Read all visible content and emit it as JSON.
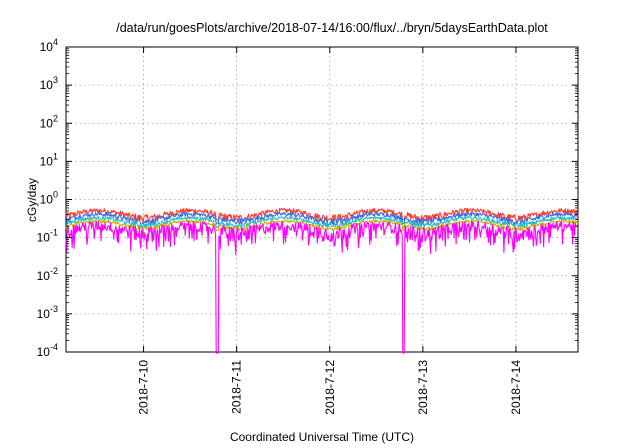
{
  "chart_data": {
    "type": "line",
    "title": "/data/run/goesPlots/archive/2018-07-14/16:00/flux/../bryn/5daysEarthData.plot",
    "xlabel": "Coordinated Universal Time (UTC)",
    "ylabel": "cGy/day",
    "y_scale": "log",
    "ylim": [
      0.0001,
      10000
    ],
    "xlim": [
      "2018-07-09 04:00",
      "2018-07-14 16:00"
    ],
    "x_ticks": [
      "2018-7-10",
      "2018-7-11",
      "2018-7-12",
      "2018-7-13",
      "2018-7-14"
    ],
    "y_ticks": [
      {
        "base": "10",
        "exp": "-4"
      },
      {
        "base": "10",
        "exp": "-3"
      },
      {
        "base": "10",
        "exp": "-2"
      },
      {
        "base": "10",
        "exp": "-1"
      },
      {
        "base": "10",
        "exp": "0"
      },
      {
        "base": "10",
        "exp": "1"
      },
      {
        "base": "10",
        "exp": "2"
      },
      {
        "base": "10",
        "exp": "3"
      },
      {
        "base": "10",
        "exp": "4"
      }
    ],
    "grid": true,
    "series": [
      {
        "color": "#ff3b2f",
        "level": 0.42,
        "spread": 0.18
      },
      {
        "color": "#3b6fe0",
        "level": 0.34,
        "spread": 0.15
      },
      {
        "color": "#2ab8c8",
        "level": 0.27,
        "spread": 0.12
      },
      {
        "color": "#c8b400",
        "level": 0.22,
        "spread": 0.1
      },
      {
        "color": "#ff00ff",
        "level": 0.17,
        "spread": 0.35
      }
    ],
    "dropouts": [
      "2018-07-10 19:00",
      "2018-07-12 19:00"
    ]
  }
}
